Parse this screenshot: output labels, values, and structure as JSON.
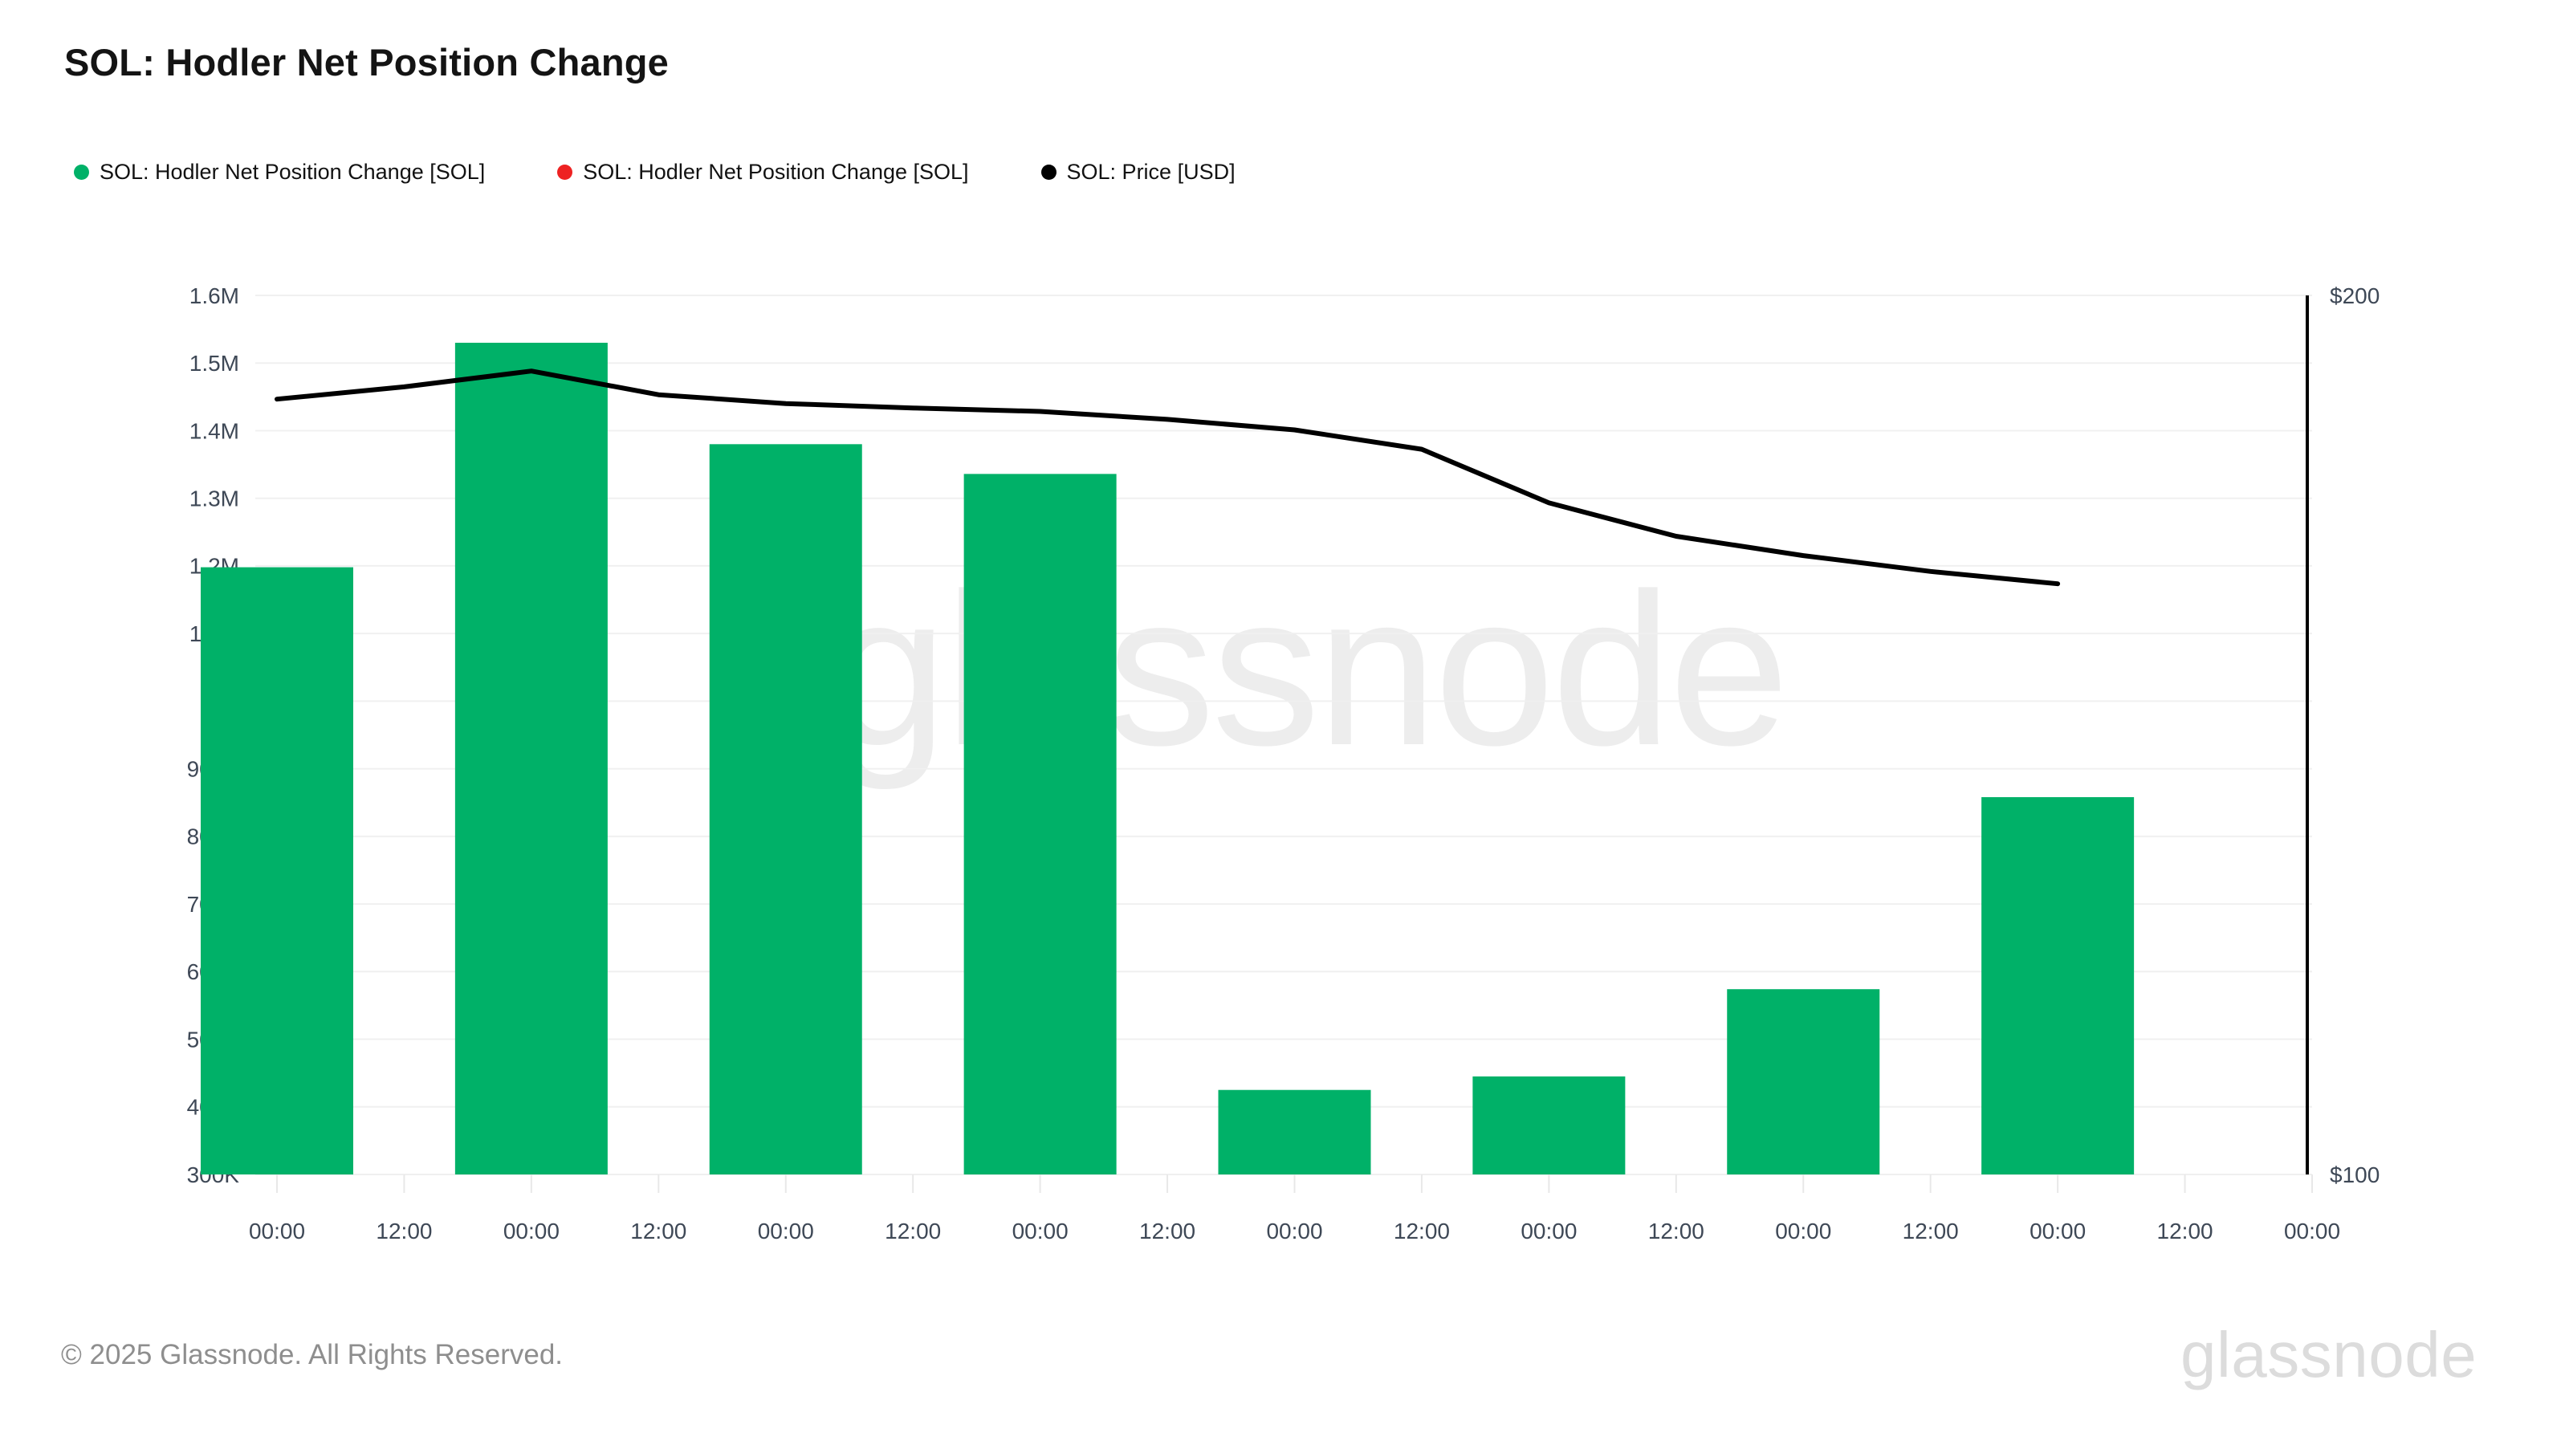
{
  "header": {
    "title": "SOL: Hodler Net Position Change"
  },
  "legend": {
    "items": [
      {
        "label": "SOL: Hodler Net Position Change [SOL]",
        "color": "#00B168"
      },
      {
        "label": "SOL: Hodler Net Position Change [SOL]",
        "color": "#EE2222"
      },
      {
        "label": "SOL: Price [USD]",
        "color": "#000000"
      }
    ]
  },
  "watermark": "glassnode",
  "footer": {
    "copyright": "© 2025 Glassnode. All Rights Reserved.",
    "logo": "glassnode"
  },
  "chart_data": {
    "type": "bar+line",
    "title": "SOL: Hodler Net Position Change",
    "grid": "horizontal-only",
    "legend_position": "top-left",
    "x_tick_labels": [
      "00:00",
      "12:00",
      "00:00",
      "12:00",
      "00:00",
      "12:00",
      "00:00",
      "12:00",
      "00:00",
      "12:00",
      "00:00",
      "12:00",
      "00:00",
      "12:00",
      "00:00",
      "12:00",
      "00:00"
    ],
    "y_left_axis": {
      "min": 300000,
      "max": 1600000,
      "step": 100000,
      "tick_labels_top_to_bottom": [
        "1.6M",
        "1.5M",
        "1.4M",
        "1.3M",
        "1.2M",
        "1.1M",
        "1M",
        "900K",
        "800K",
        "700K",
        "600K",
        "500K",
        "400K",
        "300K"
      ]
    },
    "y_right_axis": {
      "min": 100,
      "max": 200,
      "top_label": "$200",
      "bottom_label": "$100"
    },
    "series": [
      {
        "name": "SOL: Hodler Net Position Change [SOL]",
        "type": "bar",
        "color": "#00B168",
        "tick_indices": [
          0,
          2,
          4,
          6,
          8,
          10,
          12,
          14
        ],
        "values": [
          1198000,
          1530000,
          1380000,
          1336000,
          425000,
          445000,
          574000,
          858000
        ]
      },
      {
        "name": "SOL: Price [USD]",
        "type": "line",
        "color": "#000000",
        "tick_indices": [
          0,
          1,
          2,
          3,
          4,
          5,
          6,
          7,
          8,
          9,
          10,
          11,
          12,
          13,
          14
        ],
        "values": [
          188.2,
          189.6,
          191.4,
          188.7,
          187.7,
          187.2,
          186.8,
          185.9,
          184.7,
          182.5,
          176.4,
          172.6,
          170.4,
          168.6,
          167.2
        ]
      }
    ]
  }
}
